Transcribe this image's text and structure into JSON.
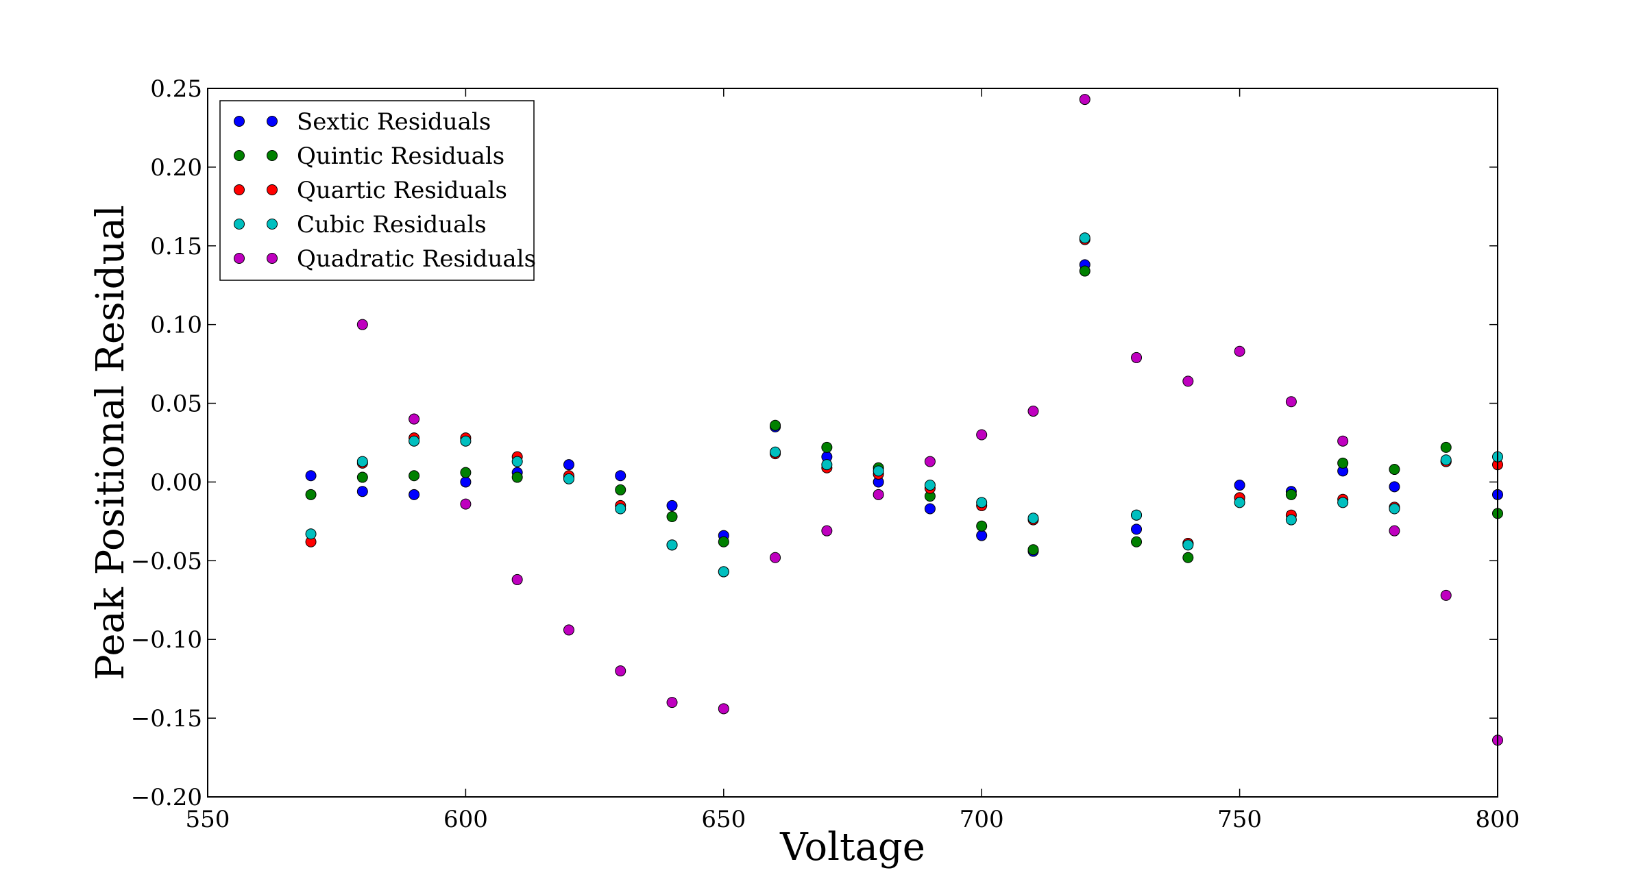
{
  "chart_data": {
    "type": "scatter",
    "title": "",
    "xlabel": "Voltage",
    "ylabel": "Peak Positional Residual",
    "xlim": [
      550,
      800
    ],
    "ylim": [
      -0.2,
      0.25
    ],
    "grid": false,
    "legend_position": "top-left",
    "x_ticks": [
      "550",
      "600",
      "650",
      "700",
      "750",
      "800"
    ],
    "x_tick_values": [
      550,
      600,
      650,
      700,
      750,
      800
    ],
    "y_ticks": [
      "−0.20",
      "−0.15",
      "−0.10",
      "−0.05",
      "0.00",
      "0.05",
      "0.10",
      "0.15",
      "0.20",
      "0.25"
    ],
    "y_tick_values": [
      -0.2,
      -0.15,
      -0.1,
      -0.05,
      0.0,
      0.05,
      0.1,
      0.15,
      0.2,
      0.25
    ],
    "x": [
      570,
      580,
      590,
      600,
      610,
      620,
      630,
      640,
      650,
      660,
      670,
      680,
      690,
      700,
      710,
      720,
      730,
      740,
      750,
      760,
      770,
      780,
      790,
      800
    ],
    "series": [
      {
        "name": "Sextic Residuals",
        "color": "#0000ff",
        "values": [
          0.004,
          -0.006,
          -0.008,
          0.0,
          0.006,
          0.011,
          0.004,
          -0.015,
          -0.034,
          0.035,
          0.016,
          0.0,
          -0.017,
          -0.034,
          -0.044,
          0.138,
          -0.03,
          -0.039,
          -0.002,
          -0.006,
          0.007,
          -0.003,
          0.013,
          -0.008
        ]
      },
      {
        "name": "Quintic Residuals",
        "color": "#008000",
        "values": [
          -0.008,
          0.003,
          0.004,
          0.006,
          0.003,
          0.003,
          -0.005,
          -0.022,
          -0.038,
          0.036,
          0.022,
          0.009,
          -0.009,
          -0.028,
          -0.043,
          0.134,
          -0.038,
          -0.048,
          -0.01,
          -0.008,
          0.012,
          0.008,
          0.022,
          -0.02
        ]
      },
      {
        "name": "Quartic Residuals",
        "color": "#ff0000",
        "values": [
          -0.038,
          0.012,
          0.028,
          0.028,
          0.016,
          0.004,
          -0.015,
          -0.04,
          -0.057,
          0.018,
          0.009,
          0.005,
          -0.004,
          -0.015,
          -0.024,
          0.154,
          -0.021,
          -0.039,
          -0.01,
          -0.021,
          -0.011,
          -0.016,
          0.013,
          0.011
        ]
      },
      {
        "name": "Cubic Residuals",
        "color": "#00bfbf",
        "values": [
          -0.033,
          0.013,
          0.026,
          0.026,
          0.013,
          0.002,
          -0.017,
          -0.04,
          -0.057,
          0.019,
          0.011,
          0.007,
          -0.002,
          -0.013,
          -0.023,
          0.155,
          -0.021,
          -0.04,
          -0.013,
          -0.024,
          -0.013,
          -0.017,
          0.014,
          0.016
        ]
      },
      {
        "name": "Quadratic Residuals",
        "color": "#bf00bf",
        "values": [
          null,
          0.1,
          0.04,
          -0.014,
          -0.062,
          -0.094,
          -0.12,
          -0.14,
          -0.144,
          -0.048,
          -0.031,
          -0.008,
          0.013,
          0.03,
          0.045,
          0.243,
          0.079,
          0.064,
          0.083,
          0.051,
          0.026,
          -0.031,
          -0.072,
          -0.164
        ]
      }
    ]
  }
}
